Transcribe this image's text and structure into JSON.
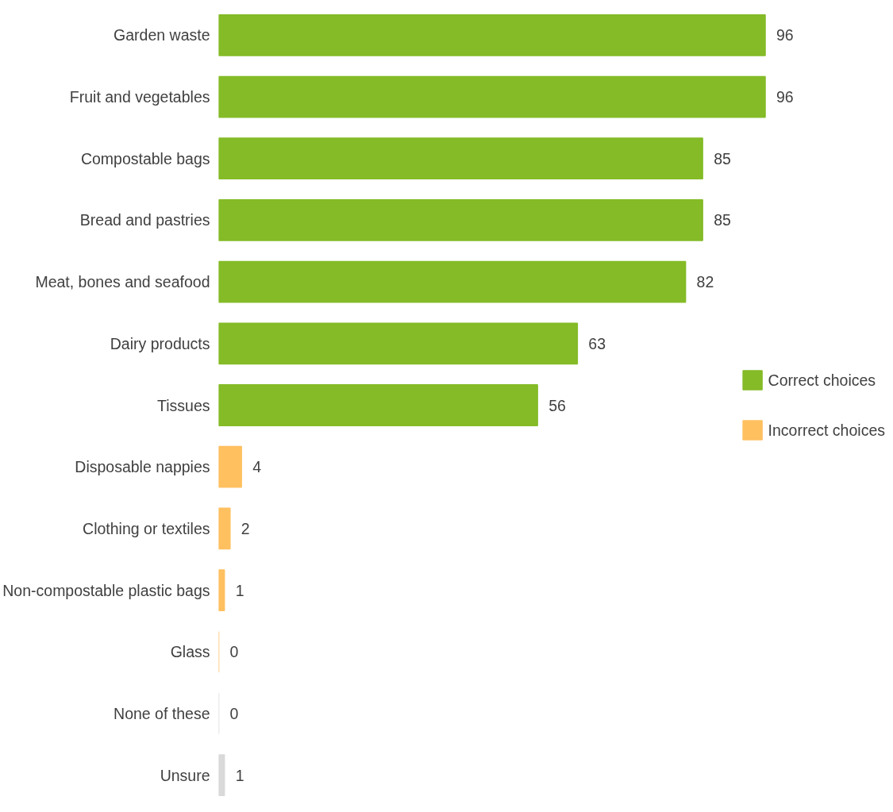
{
  "chart_data": {
    "type": "bar",
    "orientation": "horizontal",
    "data_labels": true,
    "grid": false,
    "legend": "right",
    "categories": [
      "Garden waste",
      "Fruit and vegetables",
      "Compostable bags",
      "Bread and pastries",
      "Meat, bones and seafood",
      "Dairy products",
      "Tissues",
      "Disposable nappies",
      "Clothing or textiles",
      "Non-compostable plastic bags",
      "Glass",
      "None of these",
      "Unsure"
    ],
    "series": [
      {
        "name": "Correct choices",
        "color": "#84bb27",
        "values": [
          96,
          96,
          85,
          85,
          82,
          63,
          56,
          null,
          null,
          null,
          null,
          null,
          null
        ]
      },
      {
        "name": "Incorrect choices",
        "color": "#ffc060",
        "values": [
          null,
          null,
          null,
          null,
          null,
          null,
          null,
          4,
          2,
          1,
          0,
          null,
          null
        ]
      },
      {
        "color": "#d9d9d9",
        "values": [
          null,
          null,
          null,
          null,
          null,
          null,
          null,
          null,
          null,
          null,
          null,
          0,
          1
        ]
      }
    ]
  }
}
